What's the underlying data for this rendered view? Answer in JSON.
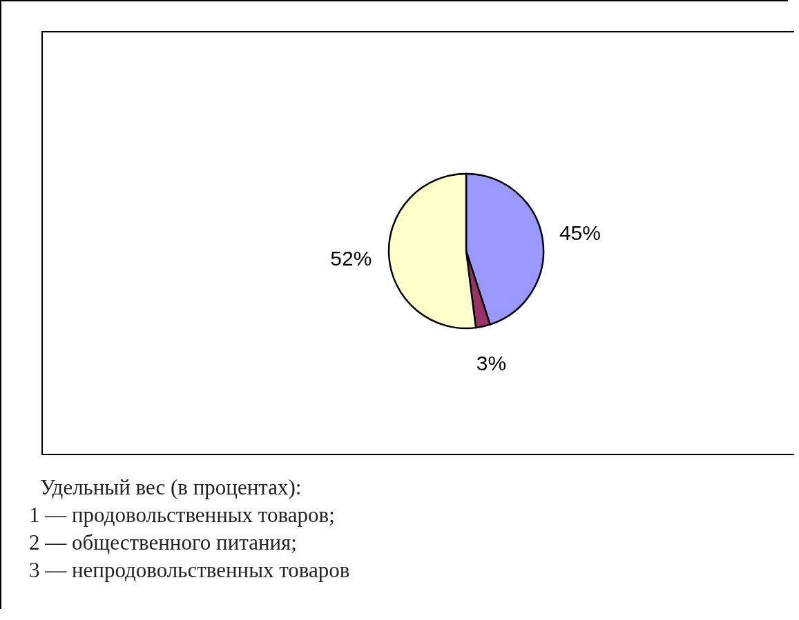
{
  "chart_data": {
    "type": "pie",
    "categories": [
      null,
      null,
      null
    ],
    "values": [
      45,
      3,
      52
    ],
    "colors": [
      "#9999ff",
      "#993366",
      "#ffffcc"
    ],
    "value_labels": [
      "45%",
      "3%",
      "52%"
    ],
    "legend": false,
    "annotations": [
      "Удельный вес (в процентах):",
      "1 — продовольственных товаров;",
      "2 — общественного питания;",
      "3 — непродовольственных товаров"
    ]
  }
}
